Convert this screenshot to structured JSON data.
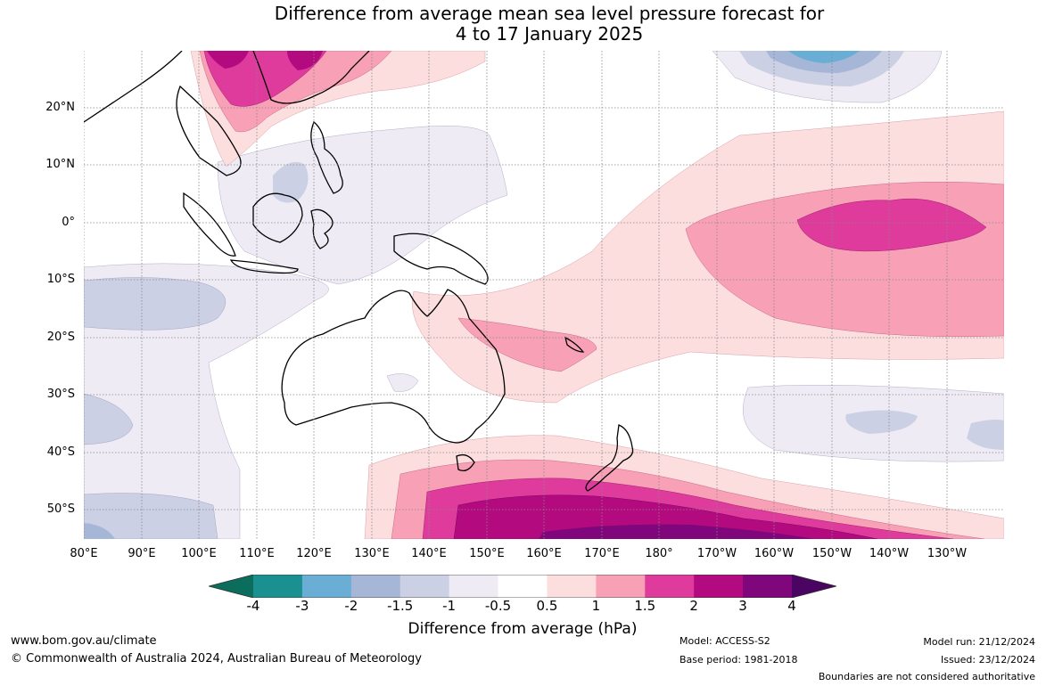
{
  "title_line1": "Difference from average mean sea level pressure forecast for",
  "title_line2": "4 to 17 January 2025",
  "lat_labels": [
    "20°N",
    "10°N",
    "0°",
    "10°S",
    "20°S",
    "30°S",
    "40°S",
    "50°S"
  ],
  "lon_labels": [
    "80°E",
    "90°E",
    "100°E",
    "110°E",
    "120°E",
    "130°E",
    "140°E",
    "150°E",
    "160°E",
    "170°E",
    "180°",
    "170°W",
    "160°W",
    "150°W",
    "140°W",
    "130°W"
  ],
  "colorbar": {
    "title": "Difference from average (hPa)",
    "tick_labels": [
      "-4",
      "-3",
      "-2",
      "-1.5",
      "-1",
      "-0.5",
      "0.5",
      "1",
      "1.5",
      "2",
      "3",
      "4"
    ],
    "colors": [
      "#1a9090",
      "#6aaed5",
      "#a5b6d6",
      "#cbd0e4",
      "#eeebf4",
      "#ffffff",
      "#fddede",
      "#f8a0b6",
      "#df3b9c",
      "#b30a80",
      "#7f077b"
    ],
    "low_extend_color": "#0b6d5c",
    "high_extend_color": "#4a0462"
  },
  "footer": {
    "url": "www.bom.gov.au/climate",
    "copyright": "© Commonwealth of Australia 2024, Australian Bureau of Meteorology",
    "model": "Model: ACCESS-S2",
    "base_period": "Base period: 1981-2018",
    "model_run": "Model run: 21/12/2024",
    "issued": "Issued: 23/12/2024",
    "disclaimer": "Boundaries are not considered authoritative"
  }
}
